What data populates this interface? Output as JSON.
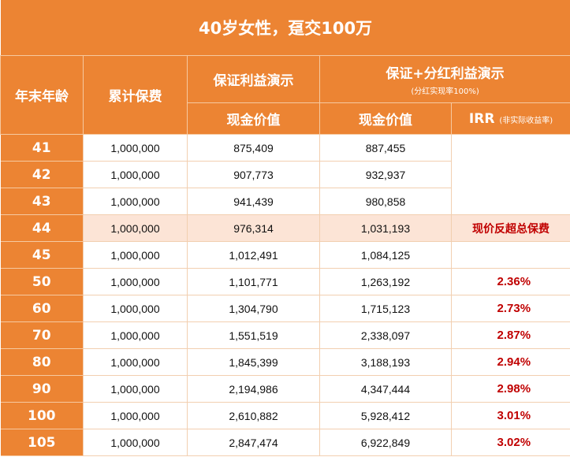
{
  "title": "40岁女性，趸交100万",
  "headers": {
    "age": "年末年龄",
    "premium": "累计保费",
    "guaranteed": "保证利益演示",
    "dividend": "保证+分红利益演示",
    "dividend_note": "(分红实现率100%)",
    "cash_value_g": "现金价值",
    "cash_value_d": "现金价值",
    "irr": "IRR",
    "irr_note": "(非实际收益率)"
  },
  "rows": [
    {
      "age": "41",
      "premium": "1,000,000",
      "guaranteed": "875,409",
      "dividend": "887,455",
      "irr": ""
    },
    {
      "age": "42",
      "premium": "1,000,000",
      "guaranteed": "907,773",
      "dividend": "932,937",
      "irr": ""
    },
    {
      "age": "43",
      "premium": "1,000,000",
      "guaranteed": "941,439",
      "dividend": "980,858",
      "irr": ""
    },
    {
      "age": "44",
      "premium": "1,000,000",
      "guaranteed": "976,314",
      "dividend": "1,031,193",
      "irr": "现价反超总保费",
      "highlight": true
    },
    {
      "age": "45",
      "premium": "1,000,000",
      "guaranteed": "1,012,491",
      "dividend": "1,084,125",
      "irr": ""
    },
    {
      "age": "50",
      "premium": "1,000,000",
      "guaranteed": "1,101,771",
      "dividend": "1,263,192",
      "irr": "2.36%"
    },
    {
      "age": "60",
      "premium": "1,000,000",
      "guaranteed": "1,304,790",
      "dividend": "1,715,123",
      "irr": "2.73%"
    },
    {
      "age": "70",
      "premium": "1,000,000",
      "guaranteed": "1,551,519",
      "dividend": "2,338,097",
      "irr": "2.87%"
    },
    {
      "age": "80",
      "premium": "1,000,000",
      "guaranteed": "1,845,399",
      "dividend": "3,188,193",
      "irr": "2.94%"
    },
    {
      "age": "90",
      "premium": "1,000,000",
      "guaranteed": "2,194,986",
      "dividend": "4,347,444",
      "irr": "2.98%"
    },
    {
      "age": "100",
      "premium": "1,000,000",
      "guaranteed": "2,610,882",
      "dividend": "5,928,412",
      "irr": "3.01%"
    },
    {
      "age": "105",
      "premium": "1,000,000",
      "guaranteed": "2,847,474",
      "dividend": "6,922,849",
      "irr": "3.02%"
    }
  ]
}
